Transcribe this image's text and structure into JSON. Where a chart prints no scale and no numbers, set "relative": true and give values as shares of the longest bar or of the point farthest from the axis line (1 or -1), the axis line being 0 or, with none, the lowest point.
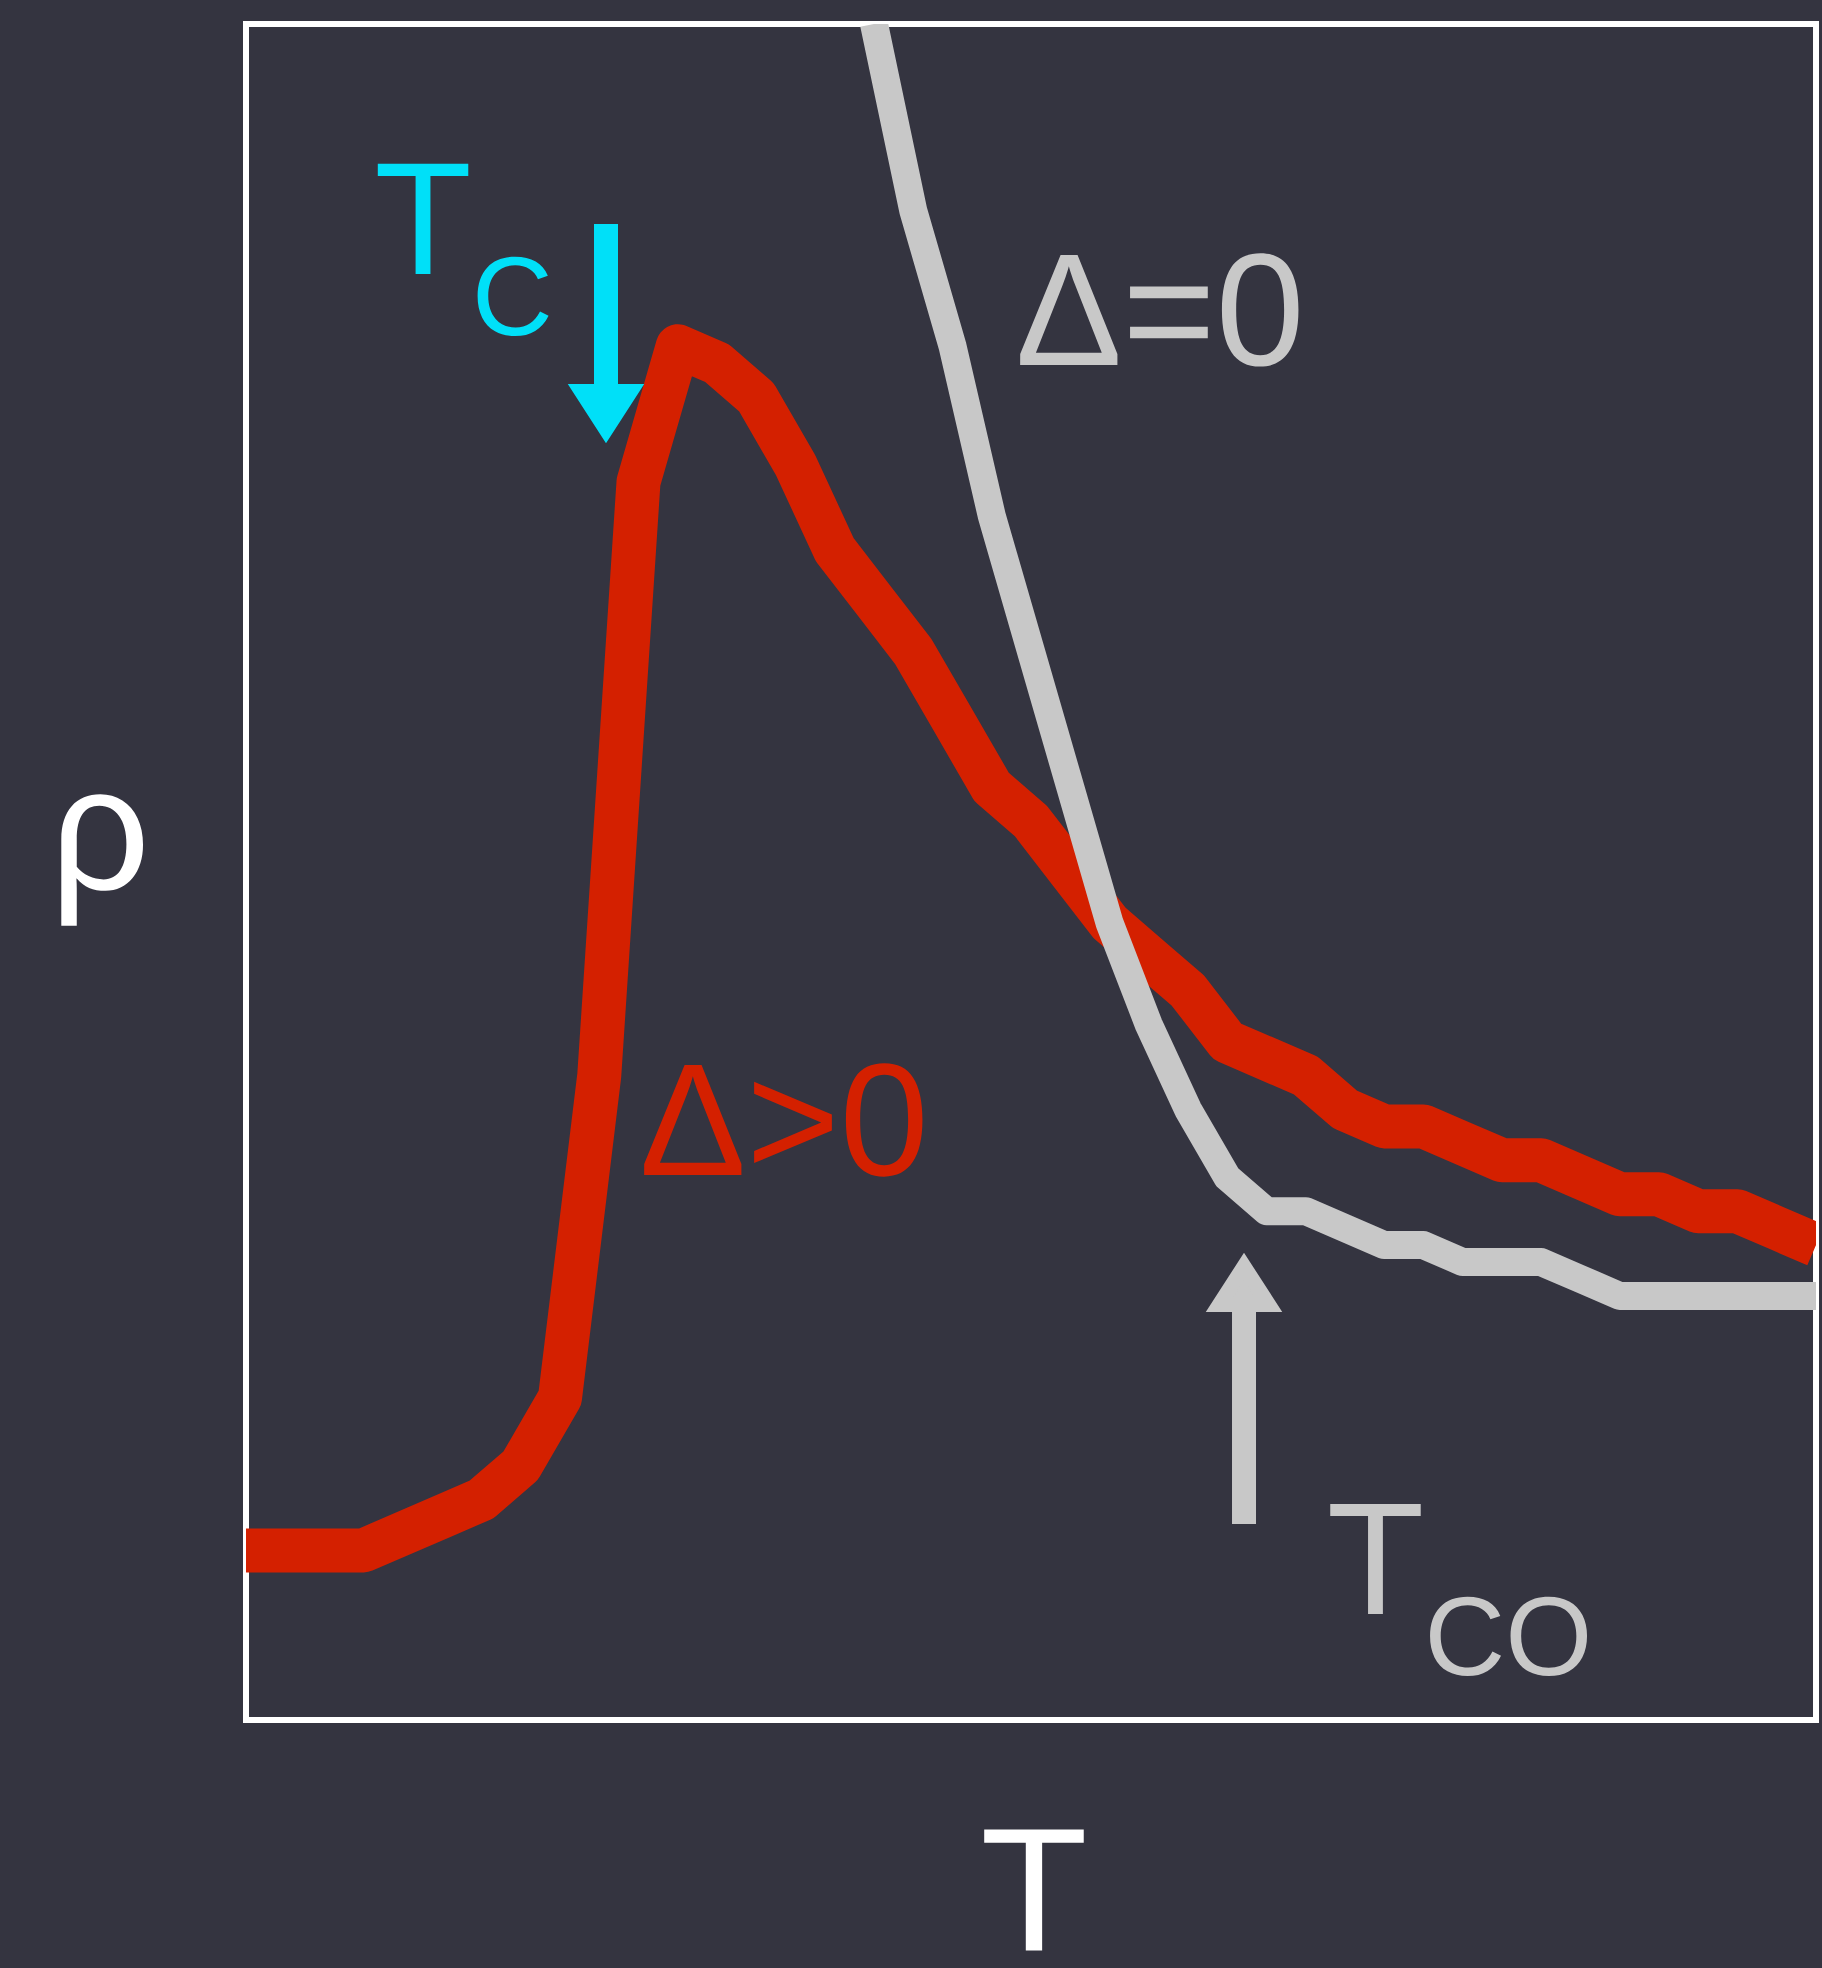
{
  "chart_data": {
    "type": "line",
    "relative": true,
    "xlabel": "T",
    "ylabel": "ρ",
    "marker": "none",
    "line_style": "solid",
    "categories": [
      null,
      null,
      null,
      null,
      null,
      null,
      null,
      null,
      null,
      null,
      null,
      null,
      null,
      null,
      null,
      null,
      null,
      null,
      null,
      null,
      null,
      null,
      null,
      null,
      null,
      null,
      null,
      null,
      null,
      null,
      null,
      null,
      null,
      null,
      null,
      null,
      null,
      null,
      null,
      null,
      null
    ],
    "series": [
      {
        "name": "Δ>0",
        "color": "#d42000",
        "values": [
          0.1,
          0.1,
          0.1,
          0.1,
          0.11,
          0.12,
          0.13,
          0.15,
          0.19,
          0.38,
          0.73,
          0.81,
          0.8,
          0.78,
          0.74,
          0.69,
          0.66,
          0.63,
          0.59,
          0.55,
          0.53,
          0.5,
          0.47,
          0.45,
          0.43,
          0.4,
          0.39,
          0.38,
          0.36,
          0.35,
          0.35,
          0.34,
          0.33,
          0.33,
          0.32,
          0.31,
          0.31,
          0.3,
          0.3,
          0.29,
          0.28
        ]
      },
      {
        "name": "Δ=0",
        "color": "#c8c8c8",
        "values": [
          null,
          null,
          null,
          null,
          null,
          null,
          null,
          null,
          null,
          null,
          null,
          null,
          null,
          null,
          null,
          null,
          1.0,
          0.89,
          0.81,
          0.71,
          0.63,
          0.55,
          0.47,
          0.41,
          0.36,
          0.32,
          0.3,
          0.3,
          0.29,
          0.28,
          0.28,
          0.27,
          0.27,
          0.27,
          0.26,
          0.25,
          0.25,
          0.25,
          0.25,
          0.25,
          0.25
        ]
      }
    ],
    "annotations": [
      "T$_{C}$",
      "T$_{CO}$"
    ]
  }
}
